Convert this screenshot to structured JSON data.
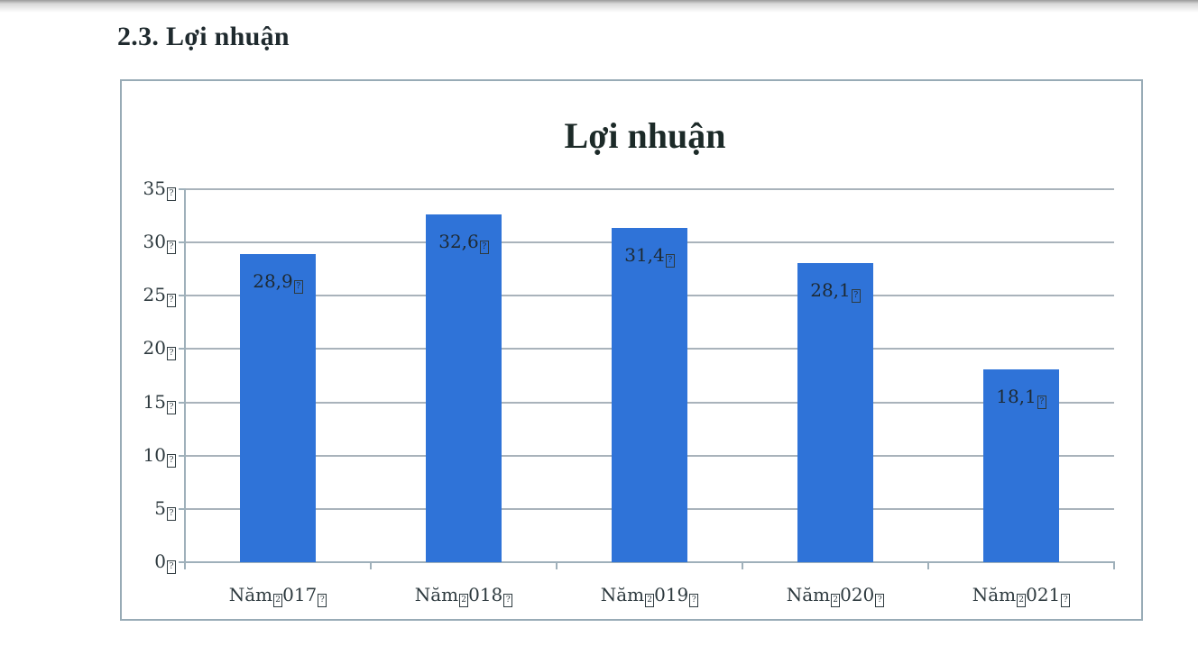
{
  "page": {
    "section_title": "2.3. Lợi nhuận"
  },
  "colors": {
    "bar": "#2f73d8",
    "gridline": "#a9b3bb",
    "frame": "#98abb6",
    "text": "#2e3a3f"
  },
  "chart_data": {
    "type": "bar",
    "title": "Lợi nhuận",
    "categories": [
      "Năm 2017",
      "Năm 2018",
      "Năm 2019",
      "Năm 2020",
      "Năm 2021"
    ],
    "values": [
      28.9,
      32.6,
      31.4,
      28.1,
      18.1
    ],
    "value_labels": [
      "28,9",
      "32,6",
      "31,4",
      "28,1",
      "18,1"
    ],
    "xlabel": "",
    "ylabel": "",
    "ylim": [
      0,
      35
    ],
    "yticks": [
      0,
      5,
      10,
      15,
      20,
      25,
      30,
      35
    ],
    "ytick_labels": [
      "0",
      "5",
      "10",
      "15",
      "20",
      "25",
      "30",
      "35"
    ],
    "grid": true,
    "legend": "none"
  }
}
